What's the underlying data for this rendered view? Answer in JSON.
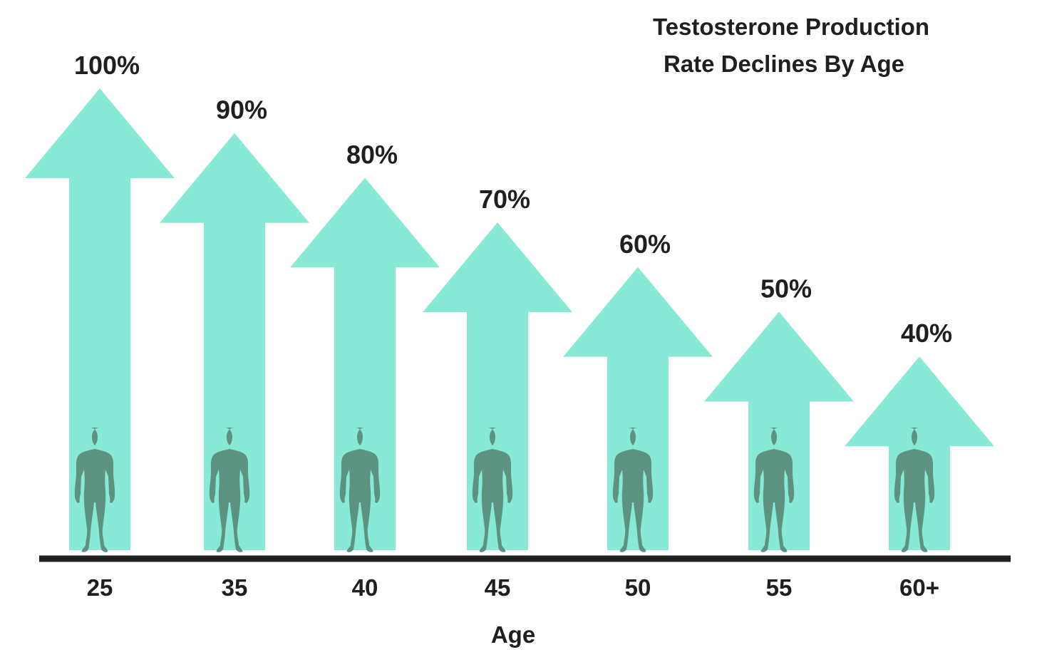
{
  "chart_data": {
    "type": "bar",
    "title_lines": [
      "Testosterone Production",
      "Rate Declines By Age"
    ],
    "xlabel": "Age",
    "ylabel": "",
    "categories": [
      "25",
      "35",
      "40",
      "45",
      "50",
      "55",
      "60+"
    ],
    "values": [
      100,
      90,
      80,
      70,
      60,
      50,
      40
    ],
    "data_labels": [
      "100%",
      "90%",
      "80%",
      "70%",
      "60%",
      "50%",
      "40%"
    ],
    "figure_dark_fraction": [
      1.0,
      0.83,
      0.78,
      0.75,
      0.72,
      0.64,
      0.48
    ],
    "ylim": [
      0,
      100
    ],
    "grid": false,
    "legend": "none",
    "colors": {
      "arrow": "#88e9d6",
      "figure_dark": "#234e3e",
      "figure_light": "#5e9280",
      "axis": "#1f1f1f"
    }
  }
}
